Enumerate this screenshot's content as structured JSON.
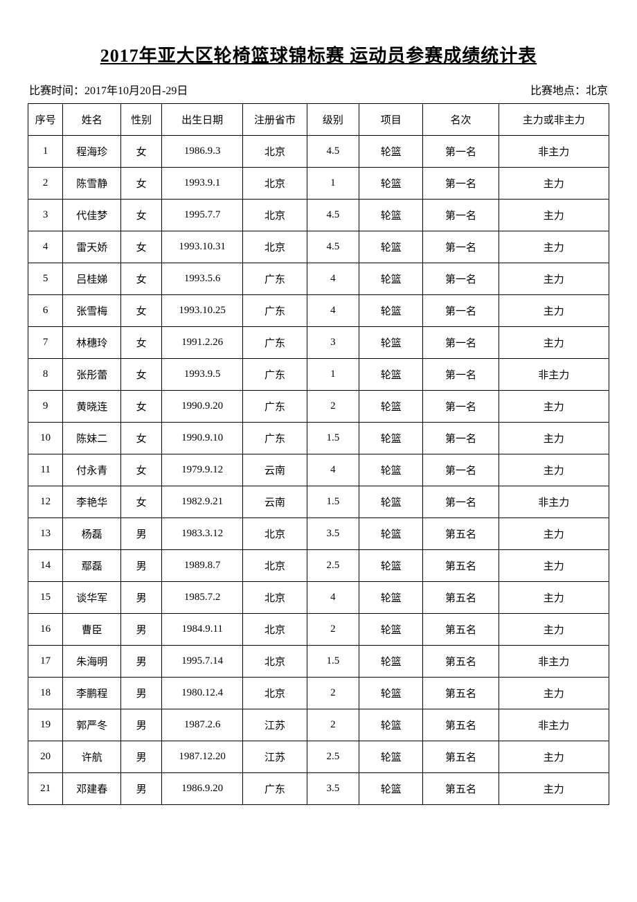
{
  "title": "2017年亚大区轮椅篮球锦标赛 运动员参赛成绩统计表",
  "meta": {
    "time_label": "比赛时间：2017年10月20日-29日",
    "location_label": "比赛地点：北京"
  },
  "table": {
    "columns": [
      "序号",
      "姓名",
      "性别",
      "出生日期",
      "注册省市",
      "级别",
      "项目",
      "名次",
      "主力或非主力"
    ],
    "rows": [
      [
        "1",
        "程海珍",
        "女",
        "1986.9.3",
        "北京",
        "4.5",
        "轮篮",
        "第一名",
        "非主力"
      ],
      [
        "2",
        "陈雪静",
        "女",
        "1993.9.1",
        "北京",
        "1",
        "轮篮",
        "第一名",
        "主力"
      ],
      [
        "3",
        "代佳梦",
        "女",
        "1995.7.7",
        "北京",
        "4.5",
        "轮篮",
        "第一名",
        "主力"
      ],
      [
        "4",
        "雷天娇",
        "女",
        "1993.10.31",
        "北京",
        "4.5",
        "轮篮",
        "第一名",
        "主力"
      ],
      [
        "5",
        "吕桂娣",
        "女",
        "1993.5.6",
        "广东",
        "4",
        "轮篮",
        "第一名",
        "主力"
      ],
      [
        "6",
        "张雪梅",
        "女",
        "1993.10.25",
        "广东",
        "4",
        "轮篮",
        "第一名",
        "主力"
      ],
      [
        "7",
        "林穗玲",
        "女",
        "1991.2.26",
        "广东",
        "3",
        "轮篮",
        "第一名",
        "主力"
      ],
      [
        "8",
        "张彤蕾",
        "女",
        "1993.9.5",
        "广东",
        "1",
        "轮篮",
        "第一名",
        "非主力"
      ],
      [
        "9",
        "黄晓连",
        "女",
        "1990.9.20",
        "广东",
        "2",
        "轮篮",
        "第一名",
        "主力"
      ],
      [
        "10",
        "陈妹二",
        "女",
        "1990.9.10",
        "广东",
        "1.5",
        "轮篮",
        "第一名",
        "主力"
      ],
      [
        "11",
        "付永青",
        "女",
        "1979.9.12",
        "云南",
        "4",
        "轮篮",
        "第一名",
        "主力"
      ],
      [
        "12",
        "李艳华",
        "女",
        "1982.9.21",
        "云南",
        "1.5",
        "轮篮",
        "第一名",
        "非主力"
      ],
      [
        "13",
        "杨磊",
        "男",
        "1983.3.12",
        "北京",
        "3.5",
        "轮篮",
        "第五名",
        "主力"
      ],
      [
        "14",
        "鄢磊",
        "男",
        "1989.8.7",
        "北京",
        "2.5",
        "轮篮",
        "第五名",
        "主力"
      ],
      [
        "15",
        "谈华军",
        "男",
        "1985.7.2",
        "北京",
        "4",
        "轮篮",
        "第五名",
        "主力"
      ],
      [
        "16",
        "曹臣",
        "男",
        "1984.9.11",
        "北京",
        "2",
        "轮篮",
        "第五名",
        "主力"
      ],
      [
        "17",
        "朱海明",
        "男",
        "1995.7.14",
        "北京",
        "1.5",
        "轮篮",
        "第五名",
        "非主力"
      ],
      [
        "18",
        "李鹏程",
        "男",
        "1980.12.4",
        "北京",
        "2",
        "轮篮",
        "第五名",
        "主力"
      ],
      [
        "19",
        "郭严冬",
        "男",
        "1987.2.6",
        "江苏",
        "2",
        "轮篮",
        "第五名",
        "非主力"
      ],
      [
        "20",
        "许航",
        "男",
        "1987.12.20",
        "江苏",
        "2.5",
        "轮篮",
        "第五名",
        "主力"
      ],
      [
        "21",
        "邓建春",
        "男",
        "1986.9.20",
        "广东",
        "3.5",
        "轮篮",
        "第五名",
        "主力"
      ]
    ]
  }
}
